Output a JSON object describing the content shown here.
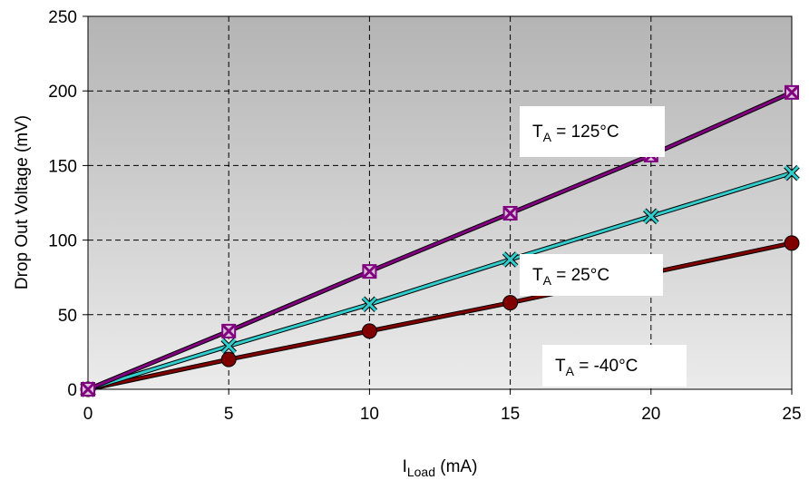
{
  "chart_data": {
    "type": "line",
    "x": [
      0,
      5,
      10,
      15,
      20,
      25
    ],
    "xlim": [
      0,
      25
    ],
    "ylim": [
      0,
      250
    ],
    "xticks": [
      "0",
      "5",
      "10",
      "15",
      "20",
      "25"
    ],
    "yticks": [
      "0",
      "50",
      "100",
      "150",
      "200",
      "250"
    ],
    "xlabel": {
      "main": "I",
      "sub": "Load",
      "unit": " (mA)"
    },
    "ylabel": "Drop Out Voltage (mV)",
    "grid": true,
    "series": [
      {
        "name": {
          "main": "T",
          "sub": "A",
          "rest": " = 125°C"
        },
        "values": [
          0,
          39,
          79,
          118,
          157,
          199
        ],
        "line_color": "#800080",
        "marker": "square-x",
        "marker_color": "#800080"
      },
      {
        "name": {
          "main": "T",
          "sub": "A",
          "rest": " = 25°C"
        },
        "values": [
          0,
          29,
          57,
          87,
          116,
          145
        ],
        "line_color": "#33cccc",
        "marker": "x",
        "marker_color": "#33cccc"
      },
      {
        "name": {
          "main": "T",
          "sub": "A",
          "rest": " = -40°C"
        },
        "values": [
          0,
          20,
          39,
          58,
          78,
          98
        ],
        "line_color": "#800000",
        "marker": "circle",
        "marker_color": "#800000"
      }
    ]
  }
}
